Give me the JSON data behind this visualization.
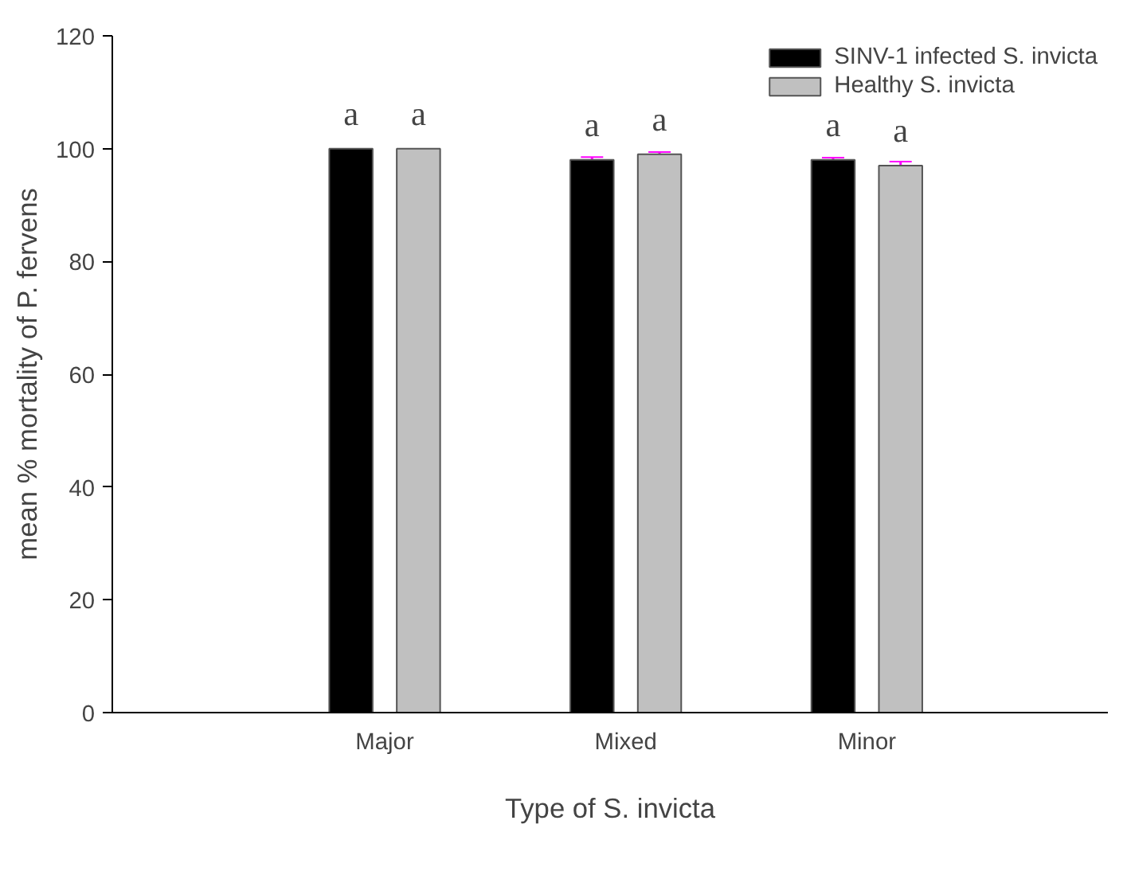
{
  "chart_data": {
    "type": "bar",
    "xlabel": "Type of S. invicta",
    "ylabel": "mean % mortality of P. fervens",
    "categories": [
      "Major",
      "Mixed",
      "Minor"
    ],
    "series": [
      {
        "name": "SINV-1 infected S. invicta",
        "color": "#000000",
        "values": [
          100,
          98,
          98
        ],
        "errors": [
          null,
          0.5,
          0.4
        ],
        "value_labels": [
          "a",
          "a",
          "a"
        ]
      },
      {
        "name": "Healthy S. invicta",
        "color": "#c0c0c0",
        "values": [
          100,
          99,
          97
        ],
        "errors": [
          null,
          0.4,
          0.7
        ],
        "value_labels": [
          "a",
          "a",
          "a"
        ]
      }
    ],
    "ylim": [
      0,
      120
    ],
    "yticks": [
      0,
      20,
      40,
      60,
      80,
      100,
      120
    ],
    "grid": false,
    "legend": "top right"
  }
}
